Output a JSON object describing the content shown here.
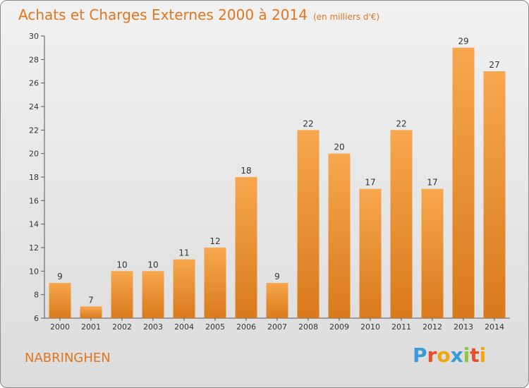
{
  "title": "Achats et Charges Externes 2000 à 2014",
  "unit": "(en milliers d'€)",
  "commune": "NABRINGHEN",
  "logo": {
    "letters": [
      "P",
      "r",
      "o",
      "x",
      "i",
      "t",
      "i"
    ],
    "colors": [
      "#3a9ad9",
      "#e94e2a",
      "#f2a60e",
      "#3a9ad9",
      "#8dc63f",
      "#e94e2a",
      "#f2a60e"
    ]
  },
  "colors": {
    "bar_light": "#f7a74e",
    "bar_dark": "#d97a1c",
    "title": "#e2761e"
  },
  "chart_data": {
    "type": "bar",
    "categories": [
      "2000",
      "2001",
      "2002",
      "2003",
      "2004",
      "2005",
      "2006",
      "2007",
      "2008",
      "2009",
      "2010",
      "2011",
      "2012",
      "2013",
      "2014"
    ],
    "values": [
      9,
      7,
      10,
      10,
      11,
      12,
      18,
      9,
      22,
      20,
      17,
      22,
      17,
      29,
      27
    ],
    "ylim": [
      6,
      30
    ],
    "yticks": [
      6,
      8,
      10,
      12,
      14,
      16,
      18,
      20,
      22,
      24,
      26,
      28,
      30
    ],
    "grid": false,
    "legend": "none"
  }
}
